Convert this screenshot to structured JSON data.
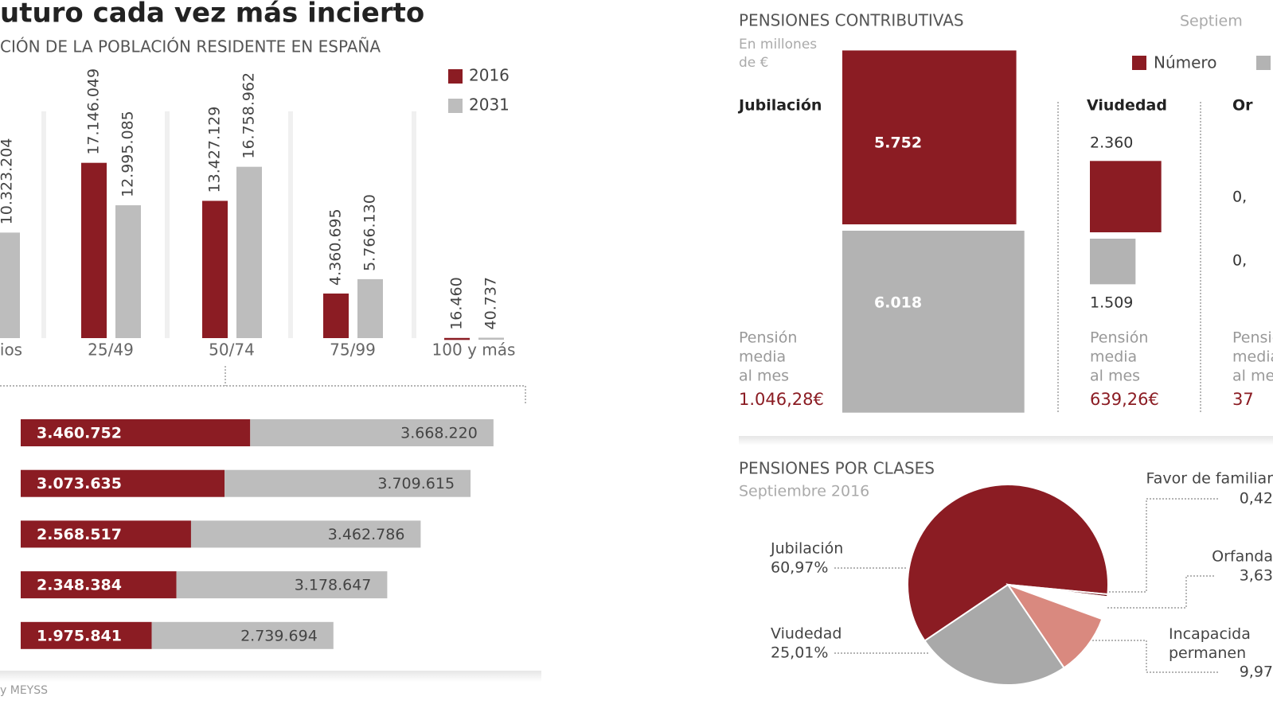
{
  "title": "uturo cada vez más incierto",
  "source": "y MEYSS",
  "chart_data": [
    {
      "type": "bar",
      "subtitle": "CIÓN DE LA POBLACIÓN RESIDENTE EN ESPAÑA",
      "categories": [
        "ios",
        "25/49",
        "50/74",
        "75/99",
        "100 y más"
      ],
      "series": [
        {
          "name": "2016",
          "color": "#8b1c23",
          "values": [
            null,
            17146049,
            13427129,
            4360695,
            16460
          ],
          "value_labels": [
            null,
            "17.146.049",
            "13.427.129",
            "4.360.695",
            "16.460"
          ]
        },
        {
          "name": "2031",
          "color": "#bdbdbd",
          "values": [
            10323204,
            12995085,
            16758962,
            5766130,
            40737
          ],
          "value_labels": [
            "10.323.204",
            "12.995.085",
            "16.758.962",
            "5.766.130",
            "40.737"
          ]
        }
      ]
    },
    {
      "type": "stacked-hbar",
      "categories": [
        null,
        null,
        null,
        null,
        null
      ],
      "series": [
        {
          "color": "#8b1c23",
          "values": [
            3460752,
            3073635,
            2568517,
            2348384,
            1975841
          ],
          "value_labels": [
            "3.460.752",
            "3.073.635",
            "2.568.517",
            "2.348.384",
            "1.975.841"
          ]
        },
        {
          "color": "#bdbdbd",
          "values": [
            3668220,
            3709615,
            3462786,
            3178647,
            2739694
          ],
          "value_labels": [
            "3.668.220",
            "3.709.615",
            "3.462.786",
            "3.178.647",
            "2.739.694"
          ]
        }
      ]
    },
    {
      "type": "square",
      "title": "PENSIONES CONTRIBUTIVAS",
      "date": "Septiem",
      "subtitle": [
        "En millones",
        "de €"
      ],
      "categories": [
        "Jubilación",
        "Viudedad",
        "Or"
      ],
      "series": [
        {
          "name": "Número",
          "color": "#8b1c23",
          "values": [
            5752,
            2360,
            null
          ],
          "value_labels": [
            "5.752",
            "2.360",
            "0,"
          ]
        },
        {
          "color": "#b3b3b3",
          "values": [
            6018,
            1509,
            null
          ],
          "value_labels": [
            "6.018",
            "1.509",
            "0,"
          ]
        }
      ],
      "mean_label": [
        "Pensión",
        "media",
        "al mes"
      ],
      "mean_values": [
        1046.28,
        639.26,
        null
      ],
      "mean_value_labels": [
        "1.046,28€",
        "639,26€",
        "37"
      ]
    },
    {
      "type": "pie",
      "title": "PENSIONES POR CLASES",
      "subtitle": "Septiembre 2016",
      "categories": [
        "Jubilación",
        "Favor de familiar",
        "Orfanda",
        "Incapacida\npermanen",
        "Viudedad"
      ],
      "values": [
        60.97,
        0.42,
        3.63,
        9.97,
        25.01
      ],
      "value_labels": [
        "60,97%",
        "0,42",
        "3,63",
        "9,97",
        "25,01%"
      ],
      "colors": [
        "#8b1c23",
        "#6e1419",
        "#ffffff",
        "#d9897f",
        "#a9a9a9"
      ]
    }
  ]
}
